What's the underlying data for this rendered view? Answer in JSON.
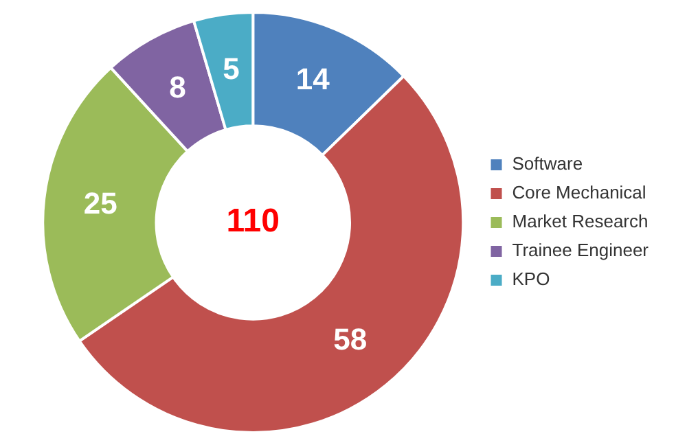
{
  "chart_data": {
    "type": "donut",
    "categories": [
      "Software",
      "Core Mechanical",
      "Market Research",
      "Trainee Engineer",
      "KPO"
    ],
    "values": [
      14,
      58,
      25,
      8,
      5
    ],
    "colors": [
      "#4f81bd",
      "#c0504d",
      "#9bbb59",
      "#8064a2",
      "#4bacc6"
    ],
    "data_labels": true,
    "legend": "right",
    "annotations": [
      "110"
    ]
  }
}
